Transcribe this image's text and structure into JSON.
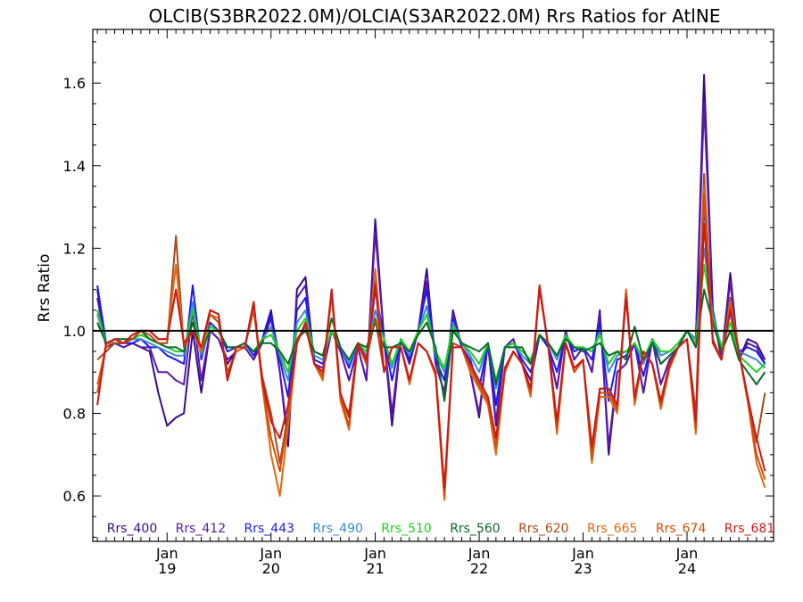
{
  "chart_data": {
    "type": "line",
    "title": "OLCIB(S3BR2022.0M)/OLCIA(S3AR2022.0M)  Rrs Ratios for AtlNE",
    "xlabel": "",
    "ylabel": "Rrs Ratio",
    "ylim": [
      0.49,
      1.73
    ],
    "yticks": [
      0.6,
      0.8,
      1.0,
      1.2,
      1.4,
      1.6
    ],
    "xlim": [
      "2018-04-15",
      "2024-10-31"
    ],
    "xticks": [
      {
        "date": "2019-01-01",
        "month": "Jan",
        "year": "19"
      },
      {
        "date": "2020-01-01",
        "month": "Jan",
        "year": "20"
      },
      {
        "date": "2021-01-01",
        "month": "Jan",
        "year": "21"
      },
      {
        "date": "2022-01-01",
        "month": "Jan",
        "year": "22"
      },
      {
        "date": "2023-01-01",
        "month": "Jan",
        "year": "23"
      },
      {
        "date": "2024-01-01",
        "month": "Jan",
        "year": "24"
      }
    ],
    "reference_line": 1.0,
    "legend_position": "bottom",
    "x": [
      "2018-05-01",
      "2018-06-01",
      "2018-07-01",
      "2018-08-01",
      "2018-09-01",
      "2018-10-01",
      "2018-11-01",
      "2018-12-01",
      "2019-01-01",
      "2019-02-01",
      "2019-03-01",
      "2019-04-01",
      "2019-05-01",
      "2019-06-01",
      "2019-07-01",
      "2019-08-01",
      "2019-09-01",
      "2019-10-01",
      "2019-11-01",
      "2019-12-01",
      "2020-01-01",
      "2020-02-01",
      "2020-03-01",
      "2020-04-01",
      "2020-05-01",
      "2020-06-01",
      "2020-07-01",
      "2020-08-01",
      "2020-09-01",
      "2020-10-01",
      "2020-11-01",
      "2020-12-01",
      "2021-01-01",
      "2021-02-01",
      "2021-03-01",
      "2021-04-01",
      "2021-05-01",
      "2021-06-01",
      "2021-07-01",
      "2021-08-01",
      "2021-09-01",
      "2021-10-01",
      "2021-11-01",
      "2021-12-01",
      "2022-01-01",
      "2022-02-01",
      "2022-03-01",
      "2022-04-01",
      "2022-05-01",
      "2022-06-01",
      "2022-07-01",
      "2022-08-01",
      "2022-09-01",
      "2022-10-01",
      "2022-11-01",
      "2022-12-01",
      "2023-01-01",
      "2023-02-01",
      "2023-03-01",
      "2023-04-01",
      "2023-05-01",
      "2023-06-01",
      "2023-07-01",
      "2023-08-01",
      "2023-09-01",
      "2023-10-01",
      "2023-11-01",
      "2023-12-01",
      "2024-01-01",
      "2024-02-01",
      "2024-03-01",
      "2024-04-01",
      "2024-05-01",
      "2024-06-01",
      "2024-07-01",
      "2024-08-01",
      "2024-09-01",
      "2024-10-01"
    ],
    "series": [
      {
        "name": "Rrs_400",
        "color": "#3a0a8c",
        "values": [
          1.1,
          0.96,
          0.97,
          0.96,
          0.97,
          0.96,
          0.95,
          0.85,
          0.77,
          0.79,
          0.8,
          1.0,
          0.85,
          1.0,
          0.98,
          0.92,
          0.95,
          0.96,
          0.93,
          0.98,
          1.05,
          0.9,
          0.72,
          1.1,
          1.13,
          0.92,
          0.9,
          1.0,
          0.95,
          0.88,
          0.96,
          0.88,
          1.27,
          0.98,
          0.77,
          0.98,
          0.92,
          1.0,
          1.15,
          0.92,
          0.85,
          1.05,
          0.96,
          0.9,
          0.79,
          0.97,
          0.77,
          0.96,
          0.98,
          0.92,
          0.88,
          0.99,
          0.96,
          0.86,
          1.0,
          0.93,
          0.96,
          0.9,
          1.05,
          0.7,
          0.9,
          0.92,
          0.97,
          0.85,
          0.98,
          0.87,
          0.93,
          0.96,
          1.0,
          0.98,
          1.62,
          1.05,
          0.93,
          1.14,
          0.93,
          0.98,
          0.97,
          0.93
        ]
      },
      {
        "name": "Rrs_412",
        "color": "#5a1aa8",
        "values": [
          1.08,
          0.96,
          0.97,
          0.96,
          0.97,
          0.96,
          0.96,
          0.9,
          0.9,
          0.88,
          0.87,
          1.05,
          0.88,
          1.0,
          0.98,
          0.93,
          0.95,
          0.96,
          0.93,
          0.97,
          1.03,
          0.9,
          0.74,
          1.08,
          1.11,
          0.92,
          0.91,
          1.0,
          0.95,
          0.88,
          0.96,
          0.88,
          1.24,
          0.98,
          0.8,
          0.98,
          0.92,
          1.0,
          1.12,
          0.92,
          0.85,
          1.04,
          0.96,
          0.9,
          0.8,
          0.97,
          0.78,
          0.96,
          0.98,
          0.92,
          0.88,
          0.99,
          0.96,
          0.86,
          1.0,
          0.93,
          0.96,
          0.9,
          1.04,
          0.72,
          0.9,
          0.92,
          0.97,
          0.85,
          0.98,
          0.87,
          0.93,
          0.96,
          1.0,
          0.98,
          1.55,
          1.05,
          0.93,
          1.12,
          0.93,
          0.97,
          0.96,
          0.92
        ]
      },
      {
        "name": "Rrs_443",
        "color": "#1a1af0",
        "values": [
          1.11,
          0.97,
          0.97,
          0.97,
          0.97,
          0.98,
          0.96,
          0.96,
          0.94,
          0.93,
          0.92,
          1.11,
          0.93,
          1.02,
          1.0,
          0.95,
          0.96,
          0.97,
          0.94,
          0.98,
          1.04,
          0.93,
          0.84,
          1.05,
          1.08,
          0.93,
          0.92,
          1.0,
          0.96,
          0.91,
          0.97,
          0.92,
          1.1,
          0.98,
          0.88,
          0.98,
          0.93,
          1.0,
          1.1,
          0.93,
          0.88,
          1.03,
          0.96,
          0.93,
          0.86,
          0.97,
          0.82,
          0.96,
          0.97,
          0.93,
          0.9,
          0.99,
          0.96,
          0.9,
          0.99,
          0.95,
          0.96,
          0.93,
          1.02,
          0.83,
          0.93,
          0.94,
          0.97,
          0.89,
          0.98,
          0.92,
          0.94,
          0.96,
          1.0,
          0.98,
          1.3,
          1.05,
          0.95,
          1.07,
          0.95,
          0.96,
          0.95,
          0.92
        ]
      },
      {
        "name": "Rrs_490",
        "color": "#3a8ad0",
        "values": [
          1.04,
          0.97,
          0.97,
          0.97,
          0.98,
          0.98,
          0.97,
          0.96,
          0.95,
          0.94,
          0.94,
          1.07,
          0.94,
          1.01,
          1.0,
          0.96,
          0.96,
          0.97,
          0.95,
          0.98,
          1.01,
          0.94,
          0.88,
          1.02,
          1.05,
          0.94,
          0.93,
          1.0,
          0.96,
          0.92,
          0.97,
          0.94,
          1.05,
          0.98,
          0.91,
          0.98,
          0.94,
          1.0,
          1.06,
          0.94,
          0.9,
          1.02,
          0.97,
          0.94,
          0.9,
          0.97,
          0.86,
          0.96,
          0.97,
          0.94,
          0.92,
          0.99,
          0.97,
          0.93,
          0.99,
          0.96,
          0.96,
          0.95,
          1.0,
          0.9,
          0.94,
          0.95,
          0.97,
          0.92,
          0.98,
          0.94,
          0.95,
          0.97,
          1.0,
          0.98,
          1.2,
          1.04,
          0.96,
          1.04,
          0.95,
          0.94,
          0.93,
          0.91
        ]
      },
      {
        "name": "Rrs_510",
        "color": "#20d020",
        "values": [
          1.05,
          0.97,
          0.98,
          0.98,
          0.98,
          0.99,
          0.98,
          0.97,
          0.96,
          0.95,
          0.95,
          1.05,
          0.95,
          1.01,
          1.0,
          0.96,
          0.96,
          0.97,
          0.95,
          0.98,
          0.99,
          0.95,
          0.9,
          1.0,
          1.03,
          0.95,
          0.94,
          1.0,
          0.96,
          0.93,
          0.97,
          0.95,
          1.03,
          0.98,
          0.92,
          0.98,
          0.95,
          1.0,
          1.04,
          0.95,
          0.91,
          1.01,
          0.97,
          0.95,
          0.92,
          0.97,
          0.88,
          0.96,
          0.97,
          0.95,
          0.93,
          0.99,
          0.97,
          0.94,
          0.99,
          0.96,
          0.96,
          0.95,
          0.99,
          0.92,
          0.95,
          0.95,
          0.97,
          0.93,
          0.98,
          0.95,
          0.95,
          0.97,
          1.0,
          0.97,
          1.16,
          1.03,
          0.96,
          1.02,
          0.94,
          0.92,
          0.9,
          0.92
        ]
      },
      {
        "name": "Rrs_560",
        "color": "#0a6a2a",
        "values": [
          1.02,
          0.97,
          0.98,
          0.98,
          0.98,
          1.0,
          0.98,
          0.97,
          0.96,
          0.96,
          0.95,
          1.02,
          0.95,
          1.0,
          1.0,
          0.96,
          0.96,
          0.97,
          0.95,
          0.97,
          0.97,
          0.95,
          0.92,
          0.98,
          1.0,
          0.95,
          0.94,
          1.03,
          0.96,
          0.93,
          0.97,
          0.96,
          1.02,
          0.96,
          0.96,
          0.97,
          0.95,
          0.99,
          1.02,
          0.96,
          0.83,
          1.0,
          0.97,
          0.96,
          0.95,
          0.97,
          0.87,
          0.96,
          0.96,
          0.96,
          0.92,
          0.99,
          0.97,
          0.94,
          0.98,
          0.96,
          0.95,
          0.96,
          0.97,
          0.94,
          0.95,
          0.93,
          1.01,
          0.93,
          0.97,
          0.92,
          0.94,
          0.96,
          1.0,
          0.96,
          1.1,
          1.02,
          0.95,
          1.0,
          0.93,
          0.9,
          0.87,
          0.9
        ]
      },
      {
        "name": "Rrs_620",
        "color": "#a84a1a",
        "values": [
          0.93,
          0.95,
          0.97,
          0.97,
          0.98,
          1.0,
          0.99,
          0.97,
          0.97,
          1.23,
          0.96,
          1.0,
          0.95,
          1.04,
          1.02,
          0.9,
          0.95,
          0.96,
          1.05,
          0.89,
          0.8,
          0.68,
          0.8,
          0.98,
          1.01,
          0.92,
          0.89,
          1.09,
          0.84,
          0.8,
          0.97,
          0.93,
          1.03,
          0.9,
          0.96,
          0.96,
          0.88,
          0.97,
          0.95,
          0.9,
          0.6,
          0.97,
          0.96,
          0.91,
          0.87,
          0.83,
          0.71,
          0.9,
          0.95,
          0.92,
          0.85,
          1.1,
          0.96,
          0.78,
          0.97,
          0.9,
          0.93,
          0.7,
          0.86,
          0.86,
          0.82,
          1.1,
          0.83,
          0.95,
          0.92,
          0.83,
          0.92,
          0.96,
          0.98,
          0.8,
          1.38,
          0.98,
          0.93,
          1.08,
          0.95,
          0.84,
          0.73,
          0.85
        ]
      },
      {
        "name": "Rrs_665",
        "color": "#e06a10",
        "values": [
          0.87,
          0.96,
          0.98,
          0.97,
          0.99,
          1.0,
          1.0,
          0.98,
          0.98,
          1.16,
          0.97,
          1.0,
          0.95,
          1.04,
          1.03,
          0.89,
          0.95,
          0.96,
          1.06,
          0.87,
          0.7,
          0.6,
          0.77,
          0.97,
          1.02,
          0.92,
          0.88,
          1.09,
          0.83,
          0.76,
          0.97,
          0.92,
          1.15,
          0.9,
          0.96,
          0.96,
          0.87,
          0.97,
          0.95,
          0.89,
          0.59,
          0.96,
          0.96,
          0.9,
          0.86,
          0.82,
          0.7,
          0.9,
          0.95,
          0.92,
          0.84,
          1.11,
          0.96,
          0.75,
          0.97,
          0.9,
          0.93,
          0.68,
          0.84,
          0.84,
          0.8,
          1.1,
          0.82,
          0.95,
          0.92,
          0.81,
          0.91,
          0.96,
          0.98,
          0.75,
          1.35,
          0.97,
          0.93,
          1.07,
          0.95,
          0.83,
          0.68,
          0.62
        ]
      },
      {
        "name": "Rrs_674",
        "color": "#d84a08",
        "values": [
          0.85,
          0.97,
          0.98,
          0.97,
          0.99,
          1.0,
          1.0,
          0.98,
          0.98,
          1.1,
          0.97,
          1.0,
          0.96,
          1.05,
          1.04,
          0.88,
          0.96,
          0.96,
          1.07,
          0.87,
          0.74,
          0.66,
          0.79,
          0.97,
          1.02,
          0.92,
          0.89,
          1.1,
          0.84,
          0.77,
          0.97,
          0.92,
          1.12,
          0.9,
          0.96,
          0.96,
          0.88,
          0.97,
          0.95,
          0.9,
          0.6,
          0.96,
          0.96,
          0.91,
          0.87,
          0.83,
          0.72,
          0.9,
          0.95,
          0.92,
          0.85,
          1.11,
          0.96,
          0.76,
          0.97,
          0.9,
          0.93,
          0.69,
          0.85,
          0.85,
          0.81,
          1.09,
          0.83,
          0.95,
          0.92,
          0.82,
          0.91,
          0.96,
          0.98,
          0.76,
          1.33,
          0.97,
          0.93,
          1.06,
          0.95,
          0.83,
          0.7,
          0.64
        ]
      },
      {
        "name": "Rrs_681",
        "color": "#c81a1a",
        "values": [
          0.82,
          0.97,
          0.98,
          0.97,
          0.99,
          1.0,
          1.0,
          0.98,
          0.98,
          1.1,
          0.97,
          1.0,
          0.96,
          1.05,
          1.04,
          0.88,
          0.96,
          0.96,
          1.07,
          0.88,
          0.78,
          0.74,
          0.82,
          0.97,
          1.02,
          0.92,
          0.9,
          1.1,
          0.85,
          0.79,
          0.97,
          0.93,
          1.11,
          0.9,
          0.96,
          0.96,
          0.88,
          0.97,
          0.95,
          0.9,
          0.62,
          0.96,
          0.96,
          0.92,
          0.88,
          0.84,
          0.74,
          0.91,
          0.95,
          0.92,
          0.86,
          1.11,
          0.96,
          0.78,
          0.97,
          0.91,
          0.93,
          0.72,
          0.86,
          0.86,
          0.82,
          1.08,
          0.84,
          0.95,
          0.92,
          0.83,
          0.92,
          0.96,
          0.98,
          0.78,
          1.26,
          0.97,
          0.93,
          1.05,
          0.95,
          0.84,
          0.74,
          0.66
        ]
      }
    ]
  }
}
